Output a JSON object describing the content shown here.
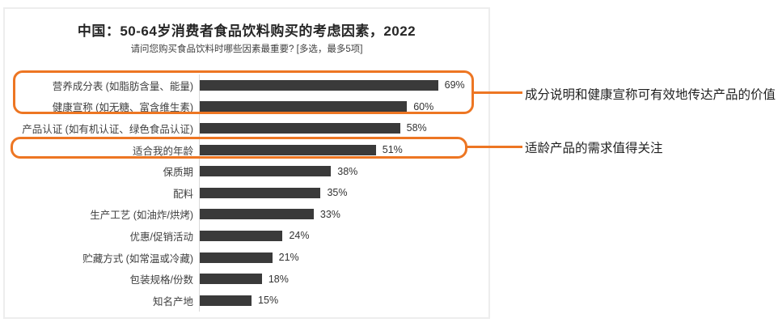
{
  "header": {
    "title": "中国：50-64岁消费者食品饮料购买的考虑因素，2022",
    "subtitle": "请问您购买食品饮料时哪些因素最重要? [多选，最多5项]"
  },
  "chart_data": {
    "type": "bar",
    "orientation": "horizontal",
    "title": "中国：50-64岁消费者食品饮料购买的考虑因素，2022",
    "subtitle": "请问您购买食品饮料时哪些因素最重要? [多选，最多5项]",
    "unit": "%",
    "xlim": [
      0,
      100
    ],
    "grid": false,
    "legend": false,
    "categories": [
      "营养成分表 (如脂肪含量、能量)",
      "健康宣称 (如无糖、富含维生素)",
      "产品认证 (如有机认证、绿色食品认证)",
      "适合我的年龄",
      "保质期",
      "配料",
      "生产工艺 (如油炸/烘烤)",
      "优惠/促销活动",
      "贮藏方式 (如常温或冷藏)",
      "包装规格/份数",
      "知名产地"
    ],
    "values": [
      69,
      60,
      58,
      51,
      38,
      35,
      33,
      24,
      21,
      18,
      15
    ],
    "value_labels": [
      "69%",
      "60%",
      "58%",
      "51%",
      "38%",
      "35%",
      "33%",
      "24%",
      "21%",
      "18%",
      "15%"
    ]
  },
  "annotations": [
    {
      "text": "成分说明和健康宣称可有效地传达产品的价值",
      "highlighted_categories": [
        "营养成分表 (如脂肪含量、能量)",
        "健康宣称 (如无糖、富含维生素)"
      ]
    },
    {
      "text": "适龄产品的需求值得关注",
      "highlighted_categories": [
        "适合我的年龄"
      ]
    }
  ],
  "colors": {
    "bar": "#3a3a3a",
    "accent": "#ed7623",
    "axis_line": "#d9d9d9",
    "panel_border": "#ededed",
    "title_text": "#262626",
    "label_text": "#3f3f3f"
  }
}
